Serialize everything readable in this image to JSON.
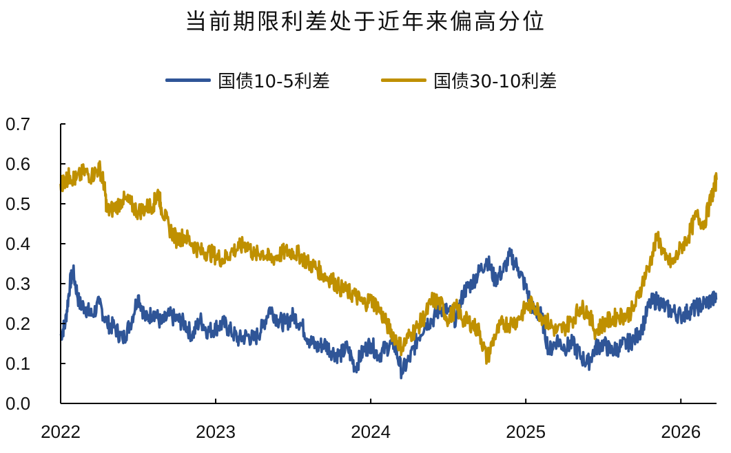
{
  "chart_data": {
    "type": "line",
    "title": "当前期限利差处于近年来偏高分位",
    "xlabel": "",
    "ylabel": "",
    "xlim": [
      2022.0,
      2026.23
    ],
    "ylim": [
      0.0,
      0.7
    ],
    "grid": false,
    "legend_position": "top-center",
    "x_ticks": [
      "2022",
      "2023",
      "2024",
      "2025",
      "2026"
    ],
    "y_ticks": [
      "0.0",
      "0.1",
      "0.2",
      "0.3",
      "0.4",
      "0.5",
      "0.6",
      "0.7"
    ],
    "series": [
      {
        "name": "国债10-5利差",
        "color": "#2f5597",
        "x": [
          2022.0,
          2022.03,
          2022.06,
          2022.08,
          2022.12,
          2022.16,
          2022.2,
          2022.25,
          2022.3,
          2022.35,
          2022.4,
          2022.45,
          2022.5,
          2022.55,
          2022.6,
          2022.65,
          2022.7,
          2022.75,
          2022.8,
          2022.85,
          2022.9,
          2022.95,
          2023.0,
          2023.05,
          2023.1,
          2023.15,
          2023.2,
          2023.25,
          2023.3,
          2023.35,
          2023.4,
          2023.45,
          2023.5,
          2023.55,
          2023.6,
          2023.65,
          2023.7,
          2023.75,
          2023.8,
          2023.85,
          2023.9,
          2023.95,
          2024.0,
          2024.05,
          2024.1,
          2024.15,
          2024.2,
          2024.25,
          2024.3,
          2024.35,
          2024.4,
          2024.45,
          2024.5,
          2024.55,
          2024.6,
          2024.65,
          2024.7,
          2024.75,
          2024.8,
          2024.85,
          2024.9,
          2024.95,
          2025.0,
          2025.05,
          2025.1,
          2025.15,
          2025.2,
          2025.25,
          2025.3,
          2025.35,
          2025.4,
          2025.45,
          2025.5,
          2025.55,
          2025.6,
          2025.65,
          2025.7,
          2025.75,
          2025.8,
          2025.85,
          2025.9,
          2025.95,
          2026.0,
          2026.05,
          2026.1,
          2026.15,
          2026.2,
          2026.23
        ],
        "values": [
          0.17,
          0.2,
          0.3,
          0.33,
          0.25,
          0.24,
          0.22,
          0.25,
          0.2,
          0.19,
          0.16,
          0.2,
          0.27,
          0.21,
          0.23,
          0.2,
          0.22,
          0.21,
          0.2,
          0.17,
          0.21,
          0.18,
          0.19,
          0.2,
          0.18,
          0.16,
          0.17,
          0.16,
          0.19,
          0.24,
          0.21,
          0.2,
          0.22,
          0.2,
          0.16,
          0.14,
          0.15,
          0.13,
          0.12,
          0.14,
          0.09,
          0.13,
          0.15,
          0.12,
          0.14,
          0.15,
          0.08,
          0.11,
          0.16,
          0.2,
          0.21,
          0.24,
          0.23,
          0.21,
          0.28,
          0.3,
          0.33,
          0.36,
          0.31,
          0.33,
          0.37,
          0.34,
          0.29,
          0.23,
          0.22,
          0.13,
          0.16,
          0.14,
          0.15,
          0.12,
          0.1,
          0.14,
          0.15,
          0.13,
          0.14,
          0.15,
          0.16,
          0.19,
          0.25,
          0.26,
          0.24,
          0.23,
          0.22,
          0.23,
          0.24,
          0.25,
          0.26,
          0.26
        ]
      },
      {
        "name": "国债30-10利差",
        "color": "#bf9000",
        "x": [
          2022.0,
          2022.03,
          2022.06,
          2022.1,
          2022.15,
          2022.2,
          2022.25,
          2022.28,
          2022.3,
          2022.35,
          2022.4,
          2022.45,
          2022.5,
          2022.55,
          2022.6,
          2022.63,
          2022.65,
          2022.7,
          2022.75,
          2022.8,
          2022.85,
          2022.9,
          2022.95,
          2023.0,
          2023.05,
          2023.1,
          2023.15,
          2023.2,
          2023.25,
          2023.3,
          2023.35,
          2023.4,
          2023.45,
          2023.5,
          2023.55,
          2023.6,
          2023.65,
          2023.7,
          2023.75,
          2023.8,
          2023.85,
          2023.9,
          2023.95,
          2024.0,
          2024.05,
          2024.1,
          2024.15,
          2024.2,
          2024.25,
          2024.3,
          2024.35,
          2024.4,
          2024.45,
          2024.5,
          2024.55,
          2024.6,
          2024.65,
          2024.7,
          2024.75,
          2024.8,
          2024.85,
          2024.9,
          2024.95,
          2025.0,
          2025.05,
          2025.1,
          2025.15,
          2025.2,
          2025.25,
          2025.3,
          2025.35,
          2025.4,
          2025.45,
          2025.5,
          2025.55,
          2025.6,
          2025.65,
          2025.7,
          2025.75,
          2025.8,
          2025.85,
          2025.9,
          2025.95,
          2026.0,
          2026.05,
          2026.1,
          2026.15,
          2026.2,
          2026.23
        ],
        "values": [
          0.55,
          0.56,
          0.57,
          0.56,
          0.58,
          0.57,
          0.59,
          0.55,
          0.48,
          0.49,
          0.51,
          0.5,
          0.48,
          0.49,
          0.5,
          0.53,
          0.49,
          0.44,
          0.41,
          0.42,
          0.4,
          0.38,
          0.38,
          0.37,
          0.36,
          0.38,
          0.39,
          0.4,
          0.37,
          0.38,
          0.36,
          0.37,
          0.38,
          0.38,
          0.37,
          0.35,
          0.34,
          0.32,
          0.31,
          0.29,
          0.28,
          0.27,
          0.25,
          0.26,
          0.24,
          0.2,
          0.17,
          0.14,
          0.17,
          0.19,
          0.22,
          0.26,
          0.25,
          0.21,
          0.24,
          0.21,
          0.2,
          0.18,
          0.11,
          0.17,
          0.2,
          0.2,
          0.21,
          0.24,
          0.25,
          0.22,
          0.2,
          0.18,
          0.19,
          0.21,
          0.24,
          0.23,
          0.18,
          0.2,
          0.21,
          0.22,
          0.22,
          0.24,
          0.3,
          0.35,
          0.42,
          0.36,
          0.35,
          0.39,
          0.42,
          0.47,
          0.45,
          0.52,
          0.56
        ]
      }
    ]
  }
}
